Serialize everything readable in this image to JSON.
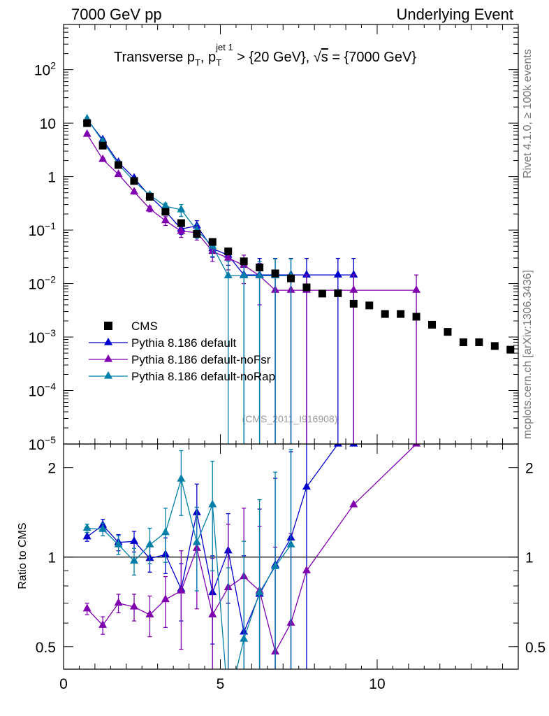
{
  "header": {
    "left": "7000 GeV pp",
    "right": "Underlying Event"
  },
  "side_labels": {
    "top": "Rivet 4.1.0, ≥ 100k events",
    "bottom": "mcplots.cern.ch [arXiv:1306.3436]"
  },
  "chart_data": {
    "type": "scatter",
    "title": {
      "prefix": "Transverse p",
      "sub1": "T",
      "mid": ", p",
      "sub2": "T",
      "sup2": "jet 1",
      "suffix": " > {20 GeV}, ",
      "sqrt_var": "s",
      "tail": " = {7000 GeV}"
    },
    "analysis_id": "(CMS_2011_I916908)",
    "x_axis": {
      "range": [
        0,
        14.5
      ],
      "ticks": [
        0,
        5,
        10
      ],
      "tick_labels": [
        "0",
        "5",
        "10"
      ]
    },
    "main_panel": {
      "y_scale": "log",
      "y_range": [
        1e-05,
        700
      ],
      "y_tick_labels": [
        {
          "value": 100,
          "base": "10",
          "exp": "2"
        },
        {
          "value": 10,
          "base": "10",
          "exp": ""
        },
        {
          "value": 1,
          "base": "1",
          "exp": ""
        },
        {
          "value": 0.1,
          "base": "10",
          "exp": "−1"
        },
        {
          "value": 0.01,
          "base": "10",
          "exp": "−2"
        },
        {
          "value": 0.001,
          "base": "10",
          "exp": "−3"
        },
        {
          "value": 0.0001,
          "base": "10",
          "exp": "−4"
        },
        {
          "value": 1e-05,
          "base": "10",
          "exp": "−5"
        }
      ]
    },
    "ratio_panel": {
      "ylabel": "Ratio to CMS",
      "y_scale": "log",
      "y_range": [
        0.42,
        2.4
      ],
      "y_tick_labels": [
        {
          "value": 2,
          "label": "2"
        },
        {
          "value": 1,
          "label": "1"
        },
        {
          "value": 0.5,
          "label": "0.5"
        }
      ]
    },
    "legend": {
      "location": "lower-left",
      "entries": [
        "CMS",
        "Pythia 8.186 default",
        "Pythia 8.186 default-noFsr",
        "Pythia 8.186 default-noRap"
      ]
    },
    "reference": {
      "name": "CMS",
      "color": "#000000",
      "x": [
        0.75,
        1.25,
        1.75,
        2.25,
        2.75,
        3.25,
        3.75,
        4.25,
        4.75,
        5.25,
        5.75,
        6.25,
        6.75,
        7.25,
        7.75,
        8.25,
        8.75,
        9.25,
        9.75,
        10.25,
        10.75,
        11.25,
        11.75,
        12.25,
        12.75,
        13.25,
        13.75,
        14.25
      ],
      "y": [
        10.0,
        3.8,
        1.65,
        0.83,
        0.42,
        0.22,
        0.135,
        0.085,
        0.06,
        0.04,
        0.026,
        0.02,
        0.0155,
        0.0125,
        0.0085,
        0.0065,
        0.0066,
        0.0042,
        0.0039,
        0.0027,
        0.0027,
        0.0024,
        0.0017,
        0.00125,
        0.0008,
        0.0008,
        0.00068,
        0.00058
      ]
    },
    "series": [
      {
        "name": "Pythia 8.186 default",
        "color": "#0000cc",
        "x": [
          0.75,
          1.25,
          1.75,
          2.25,
          2.75,
          3.25,
          3.75,
          4.25,
          4.75,
          5.25,
          5.75,
          6.25,
          6.75,
          7.25,
          7.75,
          8.75,
          9.25
        ],
        "y": [
          11.7,
          4.9,
          1.85,
          0.94,
          0.43,
          0.225,
          0.105,
          0.12,
          0.045,
          0.034,
          0.0145,
          0.0145,
          0.0145,
          0.0145,
          0.0145,
          0.0145,
          0.0145
        ],
        "ey_up": [
          0.4,
          0.22,
          0.12,
          0.07,
          0.04,
          0.03,
          0.022,
          0.03,
          0.014,
          0.012,
          0.012,
          0.015,
          0.015,
          0.015,
          0.015,
          0.015,
          0.015
        ],
        "ey_dn": [
          0.4,
          0.22,
          0.12,
          0.07,
          0.04,
          0.03,
          0.022,
          0.03,
          0.014,
          0.012,
          0.0145,
          0.0145,
          0.0145,
          0.0145,
          0.0145,
          0.0145,
          0.0145
        ],
        "ratio": [
          1.17,
          1.28,
          1.12,
          1.13,
          0.99,
          1.02,
          0.78,
          1.41,
          0.76,
          1.05,
          0.56,
          0.75,
          0.94,
          1.16,
          1.72,
          2.4,
          2.4
        ],
        "ratio_err": [
          0.04,
          0.06,
          0.07,
          0.09,
          0.1,
          0.14,
          0.17,
          0.35,
          0.25,
          0.35,
          0.45,
          0.7,
          0.9,
          1.1,
          1.5,
          0,
          0
        ]
      },
      {
        "name": "Pythia 8.186 default-noFsr",
        "color": "#8000b0",
        "x": [
          0.75,
          1.25,
          1.75,
          2.25,
          2.75,
          3.25,
          3.75,
          4.25,
          4.75,
          5.25,
          5.75,
          6.25,
          6.75,
          7.25,
          7.75,
          9.25,
          11.25
        ],
        "y": [
          6.2,
          2.1,
          1.1,
          0.52,
          0.25,
          0.15,
          0.095,
          0.09,
          0.04,
          0.03,
          0.022,
          0.014,
          0.0075,
          0.0075,
          0.0075,
          0.0075,
          0.0075
        ],
        "ey_up": [
          0.3,
          0.14,
          0.09,
          0.05,
          0.03,
          0.028,
          0.022,
          0.025,
          0.014,
          0.012,
          0.012,
          0.01,
          0.007,
          0.007,
          0.007,
          0.007,
          0.007
        ],
        "ey_dn": [
          0.3,
          0.14,
          0.09,
          0.05,
          0.03,
          0.028,
          0.022,
          0.025,
          0.014,
          0.012,
          0.012,
          0.01,
          0.0075,
          0.0075,
          0.0075,
          0.0075,
          0.0075
        ],
        "ratio": [
          0.67,
          0.59,
          0.7,
          0.68,
          0.64,
          0.72,
          0.77,
          1.07,
          0.64,
          0.79,
          0.86,
          0.77,
          0.48,
          0.6,
          0.9,
          1.5,
          2.4
        ],
        "ratio_err": [
          0.03,
          0.04,
          0.05,
          0.07,
          0.1,
          0.14,
          0.28,
          0.4,
          0.35,
          0.5,
          0.6,
          0.5,
          0.6,
          0.6,
          0,
          0,
          0
        ]
      },
      {
        "name": "Pythia 8.186 default-noRap",
        "color": "#0080a8",
        "x": [
          0.75,
          1.25,
          1.75,
          2.25,
          2.75,
          3.25,
          3.75,
          4.25,
          4.75,
          5.25,
          5.75,
          6.25,
          6.75,
          7.25
        ],
        "y": [
          12.0,
          4.6,
          1.7,
          0.82,
          0.45,
          0.28,
          0.24,
          0.1,
          0.05,
          0.014,
          0.014,
          0.014,
          0.014,
          0.014
        ],
        "ey_up": [
          0.4,
          0.2,
          0.12,
          0.07,
          0.05,
          0.04,
          0.06,
          0.03,
          0.018,
          0.012,
          0.012,
          0.012,
          0.015,
          0.015
        ],
        "ey_dn": [
          0.4,
          0.2,
          0.12,
          0.07,
          0.05,
          0.04,
          0.06,
          0.03,
          0.018,
          0.014,
          0.014,
          0.014,
          0.014,
          0.014
        ],
        "ratio": [
          1.25,
          1.24,
          1.1,
          0.97,
          1.1,
          1.21,
          1.83,
          1.12,
          1.5,
          0.32,
          0.53,
          0.76,
          0.93,
          1.1
        ],
        "ratio_err": [
          0.04,
          0.06,
          0.08,
          0.1,
          0.15,
          0.25,
          0.45,
          0.35,
          0.6,
          0.6,
          0.6,
          0.8,
          1.0,
          1.2
        ]
      }
    ]
  }
}
